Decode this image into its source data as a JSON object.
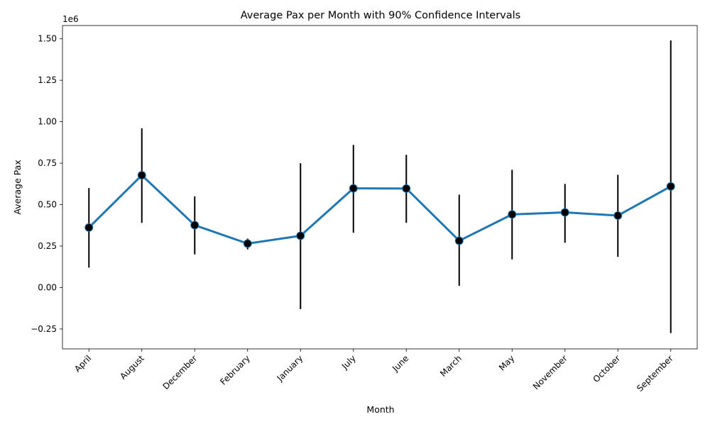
{
  "chart_data": {
    "type": "line",
    "title": "Average Pax per Month with 90% Confidence Intervals",
    "xlabel": "Month",
    "ylabel": "Average Pax",
    "y_offset_label": "1e6",
    "ylim": [
      -0.37,
      1.58
    ],
    "y_ticks": [
      -0.25,
      0.0,
      0.25,
      0.5,
      0.75,
      1.0,
      1.25,
      1.5
    ],
    "y_tick_labels": [
      "−0.25",
      "0.00",
      "0.25",
      "0.50",
      "0.75",
      "1.00",
      "1.25",
      "1.50"
    ],
    "y_unit_multiplier": 1000000,
    "grid": false,
    "legend": "none",
    "x_tick_rotation_deg": 45,
    "categories": [
      "April",
      "August",
      "December",
      "February",
      "January",
      "July",
      "June",
      "March",
      "May",
      "November",
      "October",
      "September"
    ],
    "series": [
      {
        "line_color": "#1f77b4",
        "marker_color": "#000000",
        "errorbar_color": "#000000",
        "values": [
          0.362,
          0.677,
          0.376,
          0.265,
          0.312,
          0.598,
          0.597,
          0.282,
          0.441,
          0.453,
          0.434,
          0.61
        ],
        "ci_low": [
          0.12,
          0.39,
          0.2,
          0.23,
          -0.13,
          0.33,
          0.39,
          0.01,
          0.17,
          0.27,
          0.185,
          -0.275
        ],
        "ci_high": [
          0.6,
          0.96,
          0.55,
          0.295,
          0.75,
          0.86,
          0.8,
          0.56,
          0.71,
          0.625,
          0.68,
          1.49
        ]
      }
    ]
  }
}
